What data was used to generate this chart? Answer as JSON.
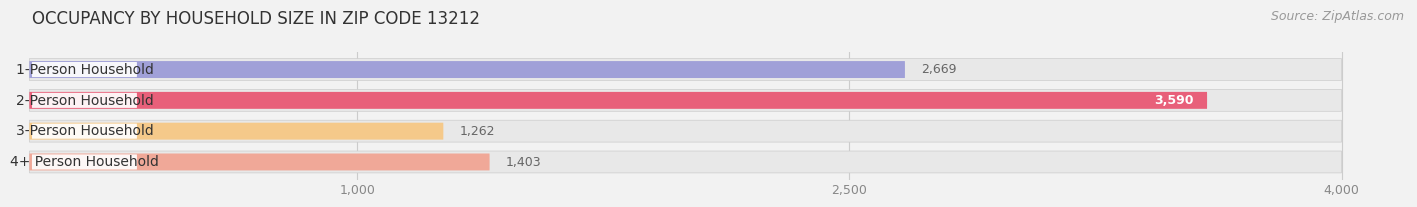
{
  "title": "OCCUPANCY BY HOUSEHOLD SIZE IN ZIP CODE 13212",
  "source": "Source: ZipAtlas.com",
  "categories": [
    "1-Person Household",
    "2-Person Household",
    "3-Person Household",
    "4+ Person Household"
  ],
  "values": [
    2669,
    3590,
    1262,
    1403
  ],
  "bar_colors": [
    "#a0a0d8",
    "#e8607a",
    "#f5c98a",
    "#f0a898"
  ],
  "value_colors": [
    "#666666",
    "#ffffff",
    "#666666",
    "#666666"
  ],
  "value_inside": [
    false,
    true,
    false,
    false
  ],
  "xlim": [
    0,
    4200
  ],
  "data_max": 4000,
  "xticks": [
    1000,
    2500,
    4000
  ],
  "background_color": "#f2f2f2",
  "row_bg_color": "#e8e8e8",
  "title_fontsize": 12,
  "source_fontsize": 9,
  "label_fontsize": 10,
  "tick_fontsize": 9,
  "value_fontsize": 9
}
